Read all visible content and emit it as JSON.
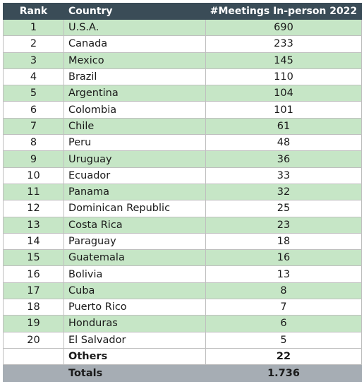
{
  "table": {
    "headers": {
      "rank": "Rank",
      "country": "Country",
      "meetings": "#Meetings In-person 2022"
    },
    "rows": [
      {
        "rank": "1",
        "country": "U.S.A.",
        "meetings": "690"
      },
      {
        "rank": "2",
        "country": "Canada",
        "meetings": "233"
      },
      {
        "rank": "3",
        "country": "Mexico",
        "meetings": "145"
      },
      {
        "rank": "4",
        "country": "Brazil",
        "meetings": "110"
      },
      {
        "rank": "5",
        "country": "Argentina",
        "meetings": "104"
      },
      {
        "rank": "6",
        "country": "Colombia",
        "meetings": "101"
      },
      {
        "rank": "7",
        "country": "Chile",
        "meetings": "61"
      },
      {
        "rank": "8",
        "country": "Peru",
        "meetings": "48"
      },
      {
        "rank": "9",
        "country": "Uruguay",
        "meetings": "36"
      },
      {
        "rank": "10",
        "country": "Ecuador",
        "meetings": "33"
      },
      {
        "rank": "11",
        "country": "Panama",
        "meetings": "32"
      },
      {
        "rank": "12",
        "country": "Dominican Republic",
        "meetings": "25"
      },
      {
        "rank": "13",
        "country": "Costa Rica",
        "meetings": "23"
      },
      {
        "rank": "14",
        "country": "Paraguay",
        "meetings": "18"
      },
      {
        "rank": "15",
        "country": "Guatemala",
        "meetings": "16"
      },
      {
        "rank": "16",
        "country": "Bolivia",
        "meetings": "13"
      },
      {
        "rank": "17",
        "country": "Cuba",
        "meetings": "8"
      },
      {
        "rank": "18",
        "country": "Puerto Rico",
        "meetings": "7"
      },
      {
        "rank": "19",
        "country": "Honduras",
        "meetings": "6"
      },
      {
        "rank": "20",
        "country": "El Salvador",
        "meetings": "5"
      }
    ],
    "others": {
      "label": "Others",
      "meetings": "22"
    },
    "totals": {
      "label": "Totals",
      "meetings": "1.736"
    }
  },
  "colors": {
    "header_bg": "#3a4c57",
    "stripe_bg": "#c6e6c6",
    "totals_bg": "#a6adb4"
  }
}
